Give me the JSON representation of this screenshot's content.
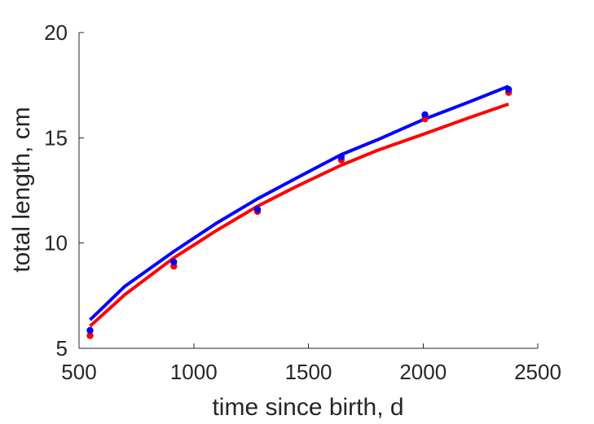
{
  "chart_data": {
    "type": "line",
    "title": "",
    "xlabel": "time since birth, d",
    "ylabel": "total length, cm",
    "xlim": [
      500,
      2500
    ],
    "ylim": [
      5,
      20
    ],
    "xticks": [
      500,
      1000,
      1500,
      2000,
      2500
    ],
    "yticks": [
      5,
      10,
      15,
      20
    ],
    "grid": false,
    "legend": "none",
    "series": [
      {
        "color": "#ff0000",
        "style": "markers",
        "x": [
          548,
          913,
          1278,
          1643,
          2008,
          2373
        ],
        "y": [
          5.6,
          8.9,
          11.5,
          13.95,
          15.9,
          17.15
        ]
      },
      {
        "color": "#0000ff",
        "style": "markers",
        "x": [
          548,
          913,
          1278,
          1643,
          2008,
          2373
        ],
        "y": [
          5.85,
          9.1,
          11.6,
          14.1,
          16.1,
          17.3
        ]
      },
      {
        "color": "#ff0000",
        "style": "line",
        "x": [
          548,
          700,
          913,
          1100,
          1278,
          1450,
          1643,
          1800,
          2008,
          2200,
          2373
        ],
        "y": [
          6.05,
          7.55,
          9.3,
          10.6,
          11.75,
          12.7,
          13.7,
          14.4,
          15.2,
          15.95,
          16.6
        ]
      },
      {
        "color": "#0000ff",
        "style": "line",
        "x": [
          548,
          700,
          913,
          1100,
          1278,
          1450,
          1643,
          1800,
          2008,
          2200,
          2373
        ],
        "y": [
          6.35,
          7.95,
          9.6,
          10.95,
          12.1,
          13.1,
          14.2,
          14.9,
          15.9,
          16.7,
          17.45
        ]
      }
    ]
  }
}
